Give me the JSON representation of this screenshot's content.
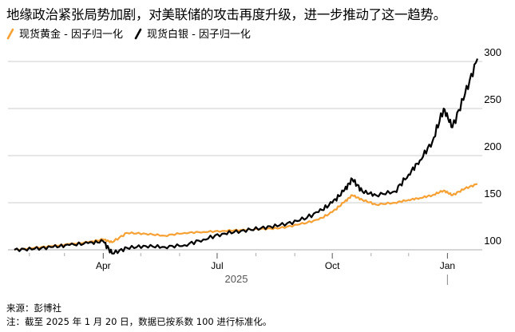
{
  "title": "地缘政治紧张局势加剧，对美联储的攻击再度升级，进一步推动了这一趋势。",
  "legend": [
    {
      "label": "现货黄金 - 因子归一化",
      "color": "#F7A134"
    },
    {
      "label": "现货白银 - 因子归一化",
      "color": "#000000"
    }
  ],
  "footer": {
    "source": "来源：彭博社",
    "note": "注：截至 2025 年 1 月 20 日，数据已按系数 100 进行标准化。"
  },
  "chart_data": {
    "type": "line",
    "title": "地缘政治紧张局势加剧，对美联储的攻击再度升级，进一步推动了这一趋势。",
    "xlabel": "2025",
    "ylabel": "",
    "ylim": [
      95,
      305
    ],
    "yticks": [
      100,
      150,
      200,
      250,
      300
    ],
    "xticks": [
      "Apr",
      "Jul",
      "Oct",
      "Jan"
    ],
    "year_label": "2025",
    "grid": "horizontal",
    "axis_position": "right",
    "x": [
      "2025-01-20",
      "2025-02-05",
      "2025-02-20",
      "2025-03-05",
      "2025-03-20",
      "2025-04-01",
      "2025-04-08",
      "2025-04-20",
      "2025-05-05",
      "2025-05-20",
      "2025-06-05",
      "2025-06-20",
      "2025-07-05",
      "2025-07-20",
      "2025-08-05",
      "2025-08-20",
      "2025-09-05",
      "2025-09-20",
      "2025-10-01",
      "2025-10-10",
      "2025-10-17",
      "2025-10-25",
      "2025-11-05",
      "2025-11-20",
      "2025-12-01",
      "2025-12-10",
      "2025-12-20",
      "2025-12-29",
      "2026-01-05",
      "2026-01-15",
      "2026-01-25"
    ],
    "series": [
      {
        "name": "现货黄金 - 因子归一化",
        "color": "#F7A134",
        "values": [
          100,
          102,
          104,
          106,
          108,
          111,
          108,
          118,
          117,
          115,
          118,
          119,
          120,
          121,
          122,
          123,
          127,
          132,
          140,
          150,
          158,
          153,
          148,
          150,
          153,
          155,
          158,
          163,
          158,
          165,
          170
        ]
      },
      {
        "name": "现货白银 - 因子归一化",
        "color": "#000000",
        "values": [
          100,
          101,
          103,
          105,
          107,
          109,
          96,
          102,
          104,
          103,
          105,
          111,
          117,
          120,
          123,
          126,
          131,
          140,
          150,
          162,
          175,
          162,
          158,
          162,
          180,
          195,
          215,
          250,
          230,
          265,
          303
        ]
      }
    ]
  }
}
